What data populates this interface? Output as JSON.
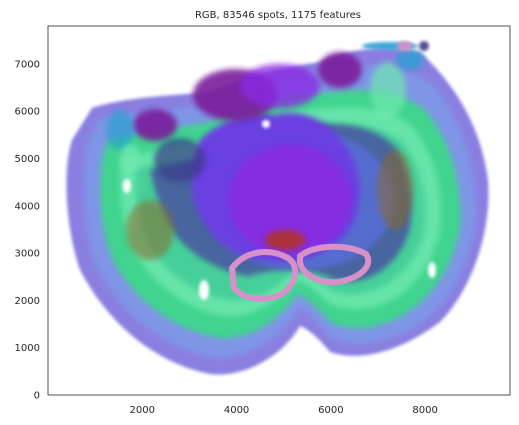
{
  "chart_data": {
    "type": "scatter",
    "title": "RGB, 83546 spots, 1175 features",
    "xlabel": "",
    "ylabel": "",
    "xlim": [
      0,
      9800
    ],
    "ylim": [
      0,
      7800
    ],
    "x_ticks": [
      2000,
      4000,
      6000,
      8000
    ],
    "x_tick_labels": [
      "2000",
      "4000",
      "6000",
      "8000"
    ],
    "y_ticks": [
      0,
      1000,
      2000,
      3000,
      4000,
      5000,
      6000,
      7000
    ],
    "y_tick_labels": [
      "0",
      "1000",
      "2000",
      "3000",
      "4000",
      "5000",
      "6000",
      "7000"
    ],
    "grid": false,
    "legend": "none",
    "colors": {
      "outer_ring": "#8a7fe0",
      "outer_ring_2": "#7f95e6",
      "band_green": "#3fd48f",
      "band_teal": "#2fbf8f",
      "band_mint": "#6fe8b0",
      "core_purple": "#8a2be2",
      "core_violet": "#6a3fe0",
      "dark_purple": "#7a1a9a",
      "navy": "#3a3a8a",
      "blue": "#5a6fe0",
      "brown": "#8a6a2a",
      "red": "#b0302a",
      "pink": "#d890c8",
      "cyan": "#2aa0d0",
      "slate": "#4a5aa0"
    }
  }
}
